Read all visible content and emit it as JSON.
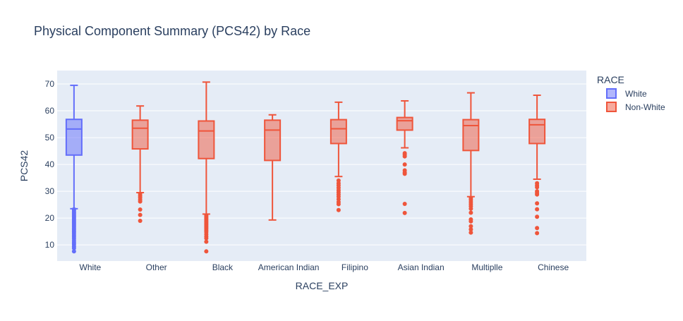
{
  "chart_data": {
    "type": "box",
    "title": "Physical Component Summary (PCS42) by Race",
    "xlabel": "RACE_EXP",
    "ylabel": "PCS42",
    "ylim": [
      4,
      75
    ],
    "yticks": [
      10,
      20,
      30,
      40,
      50,
      60,
      70
    ],
    "grid": true,
    "legend": {
      "title": "RACE",
      "position": "top-right"
    },
    "categories": [
      "White",
      "Other",
      "Black",
      "American Indian",
      "Filipino",
      "Asian Indian",
      "Multiplle",
      "Chinese"
    ],
    "series": [
      {
        "name": "White",
        "color": "#636efa",
        "boxes": [
          {
            "category": "White",
            "lower_fence": 23.5,
            "q1": 43.5,
            "median": 53.2,
            "q3": 56.8,
            "upper_fence": 69.5,
            "outliers": [
              23.3,
              22.8,
              22.2,
              21.8,
              21.3,
              20.8,
              20.3,
              19.8,
              19.3,
              18.8,
              18.3,
              17.8,
              17.3,
              16.8,
              16.2,
              15.6,
              15.0,
              14.4,
              13.7,
              13.0,
              12.3,
              11.5,
              10.8,
              10.2,
              9.5,
              8.8,
              7.6
            ]
          }
        ]
      },
      {
        "name": "Non-White",
        "color": "#ef553b",
        "boxes": [
          {
            "category": "Other",
            "lower_fence": 29.5,
            "q1": 45.8,
            "median": 53.5,
            "q3": 56.5,
            "upper_fence": 61.8,
            "outliers": [
              29.0,
              28.3,
              27.6,
              26.8,
              26.2,
              23.2,
              21.2,
              19.0
            ]
          },
          {
            "category": "Black",
            "lower_fence": 21.5,
            "q1": 42.2,
            "median": 52.5,
            "q3": 56.2,
            "upper_fence": 70.7,
            "outliers": [
              21.0,
              20.5,
              20.0,
              19.5,
              19.0,
              18.5,
              18.0,
              17.5,
              17.0,
              16.5,
              16.0,
              15.4,
              14.8,
              14.0,
              13.2,
              12.5,
              11.2,
              7.6
            ]
          },
          {
            "category": "American Indian",
            "lower_fence": 19.3,
            "q1": 41.5,
            "median": 52.8,
            "q3": 56.5,
            "upper_fence": 58.5,
            "outliers": []
          },
          {
            "category": "Filipino",
            "lower_fence": 35.5,
            "q1": 47.8,
            "median": 53.3,
            "q3": 56.7,
            "upper_fence": 63.2,
            "outliers": [
              34.0,
              33.0,
              32.2,
              31.3,
              30.4,
              29.6,
              28.8,
              28.0,
              27.0,
              26.0,
              25.2,
              23.0
            ]
          },
          {
            "category": "Asian Indian",
            "lower_fence": 46.2,
            "q1": 52.8,
            "median": 56.3,
            "q3": 57.5,
            "upper_fence": 63.7,
            "outliers": [
              44.2,
              43.6,
              43.0,
              40.0,
              37.8,
              37.0,
              36.5,
              25.3,
              21.9
            ]
          },
          {
            "category": "Multiplle",
            "lower_fence": 28.0,
            "q1": 45.2,
            "median": 54.5,
            "q3": 56.7,
            "upper_fence": 66.7,
            "outliers": [
              27.5,
              26.8,
              26.0,
              25.2,
              24.4,
              23.5,
              22.0,
              19.5,
              18.8,
              17.0,
              15.8,
              14.6
            ]
          },
          {
            "category": "Chinese",
            "lower_fence": 34.5,
            "q1": 47.8,
            "median": 54.8,
            "q3": 56.8,
            "upper_fence": 65.8,
            "outliers": [
              33.0,
              32.2,
              31.5,
              30.0,
              29.3,
              28.8,
              25.5,
              23.3,
              20.5,
              16.3,
              14.4
            ]
          }
        ]
      }
    ]
  }
}
